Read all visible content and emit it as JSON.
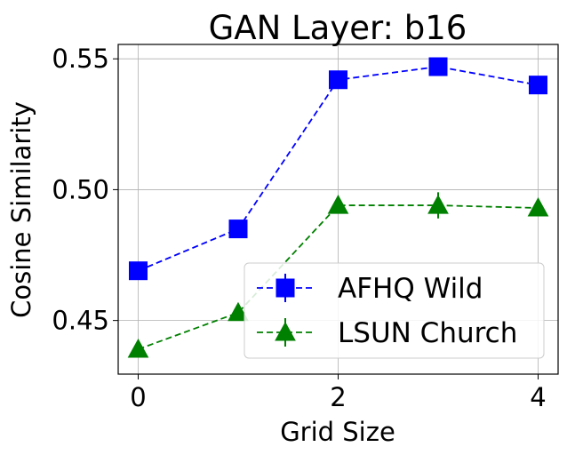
{
  "chart_data": {
    "type": "line",
    "title": "GAN Layer: b16",
    "xlabel": "Grid Size",
    "ylabel": "Cosine Similarity",
    "x": [
      0,
      1,
      2,
      3,
      4
    ],
    "xticks": [
      0,
      2,
      4
    ],
    "xtick_labels": [
      "0",
      "2",
      "4"
    ],
    "yticks": [
      0.45,
      0.5,
      0.55
    ],
    "ytick_labels": [
      "0.45",
      "0.50",
      "0.55"
    ],
    "xlim": [
      -0.2,
      4.2
    ],
    "ylim": [
      0.4295,
      0.5555
    ],
    "grid": true,
    "legend_position": "lower-right",
    "series": [
      {
        "name": "AFHQ Wild",
        "color": "#0000ff",
        "marker": "square",
        "linestyle": "dashed",
        "values": [
          0.469,
          0.485,
          0.542,
          0.547,
          0.54
        ],
        "errors": [
          0.001,
          0.001,
          0.001,
          0.001,
          0.001
        ]
      },
      {
        "name": "LSUN Church",
        "color": "#008000",
        "marker": "triangle",
        "linestyle": "dashed",
        "values": [
          0.439,
          0.453,
          0.494,
          0.494,
          0.493
        ],
        "errors": [
          0.001,
          0.001,
          0.003,
          0.005,
          0.003
        ]
      }
    ]
  }
}
